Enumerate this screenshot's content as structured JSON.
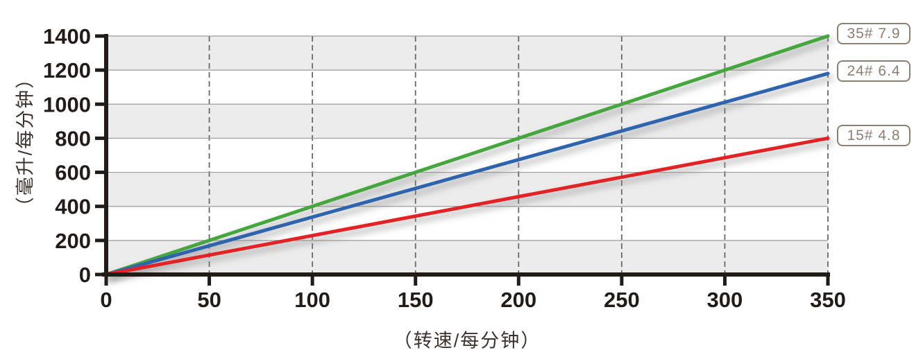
{
  "chart_data": {
    "type": "line",
    "title": "",
    "xlabel": "（转速/每分钟）",
    "ylabel": "（毫升/每分钟）",
    "xlim": [
      0,
      350
    ],
    "ylim": [
      0,
      1400
    ],
    "x_ticks": [
      0,
      50,
      100,
      150,
      200,
      250,
      300,
      350
    ],
    "y_ticks": [
      0,
      200,
      400,
      600,
      800,
      1000,
      1200,
      1400
    ],
    "grid": {
      "vertical": "dashed",
      "horizontal": "solid",
      "background_bands": "alternating-gray-white-per-200"
    },
    "legend_position": "right-outside",
    "series": [
      {
        "name": "35#",
        "label": "35# 7.9",
        "color": "#45a63e",
        "x": [
          0,
          350
        ],
        "y": [
          0,
          1400
        ]
      },
      {
        "name": "24#",
        "label": "24# 6.4",
        "color": "#2d64ad",
        "x": [
          0,
          350
        ],
        "y": [
          0,
          1180
        ]
      },
      {
        "name": "15#",
        "label": "15# 4.8",
        "color": "#e32226",
        "x": [
          0,
          350
        ],
        "y": [
          0,
          800
        ]
      }
    ]
  },
  "colors": {
    "band": "#ececec",
    "hgrid": "#9a9a9a",
    "vgrid": "#686868",
    "axis": "#221c18",
    "tick_text": "#221c18",
    "axis_title_text": "#3a322c",
    "box_border": "#8c7e73",
    "box_text": "#8c7e73",
    "line_shadow": "#909090"
  }
}
